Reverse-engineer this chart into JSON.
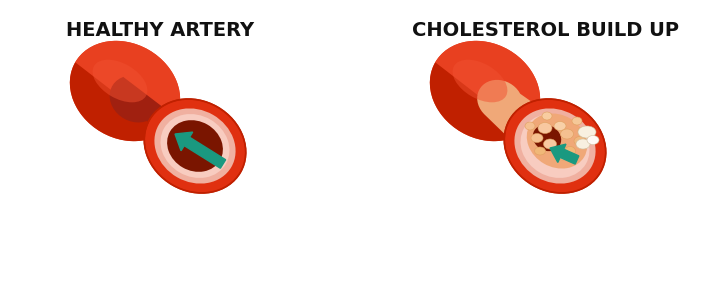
{
  "background_color": "#ffffff",
  "label_left": "HEALTHY ARTERY",
  "label_right": "CHOLESTEROL BUILD UP",
  "label_fontsize": 14,
  "label_fontweight": "bold",
  "label_color": "#111111",
  "fig_width": 7.28,
  "fig_height": 3.06,
  "dpi": 100,
  "outer_red": "#e03010",
  "outer_red_dark": "#c02000",
  "outer_red_bright": "#e84020",
  "inner_pink": "#f0b0a0",
  "inner_pink_light": "#f8ccc0",
  "lumen_dark": "#7a1500",
  "lumen_mid": "#a02010",
  "teal_arrow": "#1a9980",
  "plaque_orange": "#f0a878",
  "plaque_yellow": "#f5c898",
  "plaque_light": "#f8d8b8",
  "plaque_white": "#f8f0e0"
}
